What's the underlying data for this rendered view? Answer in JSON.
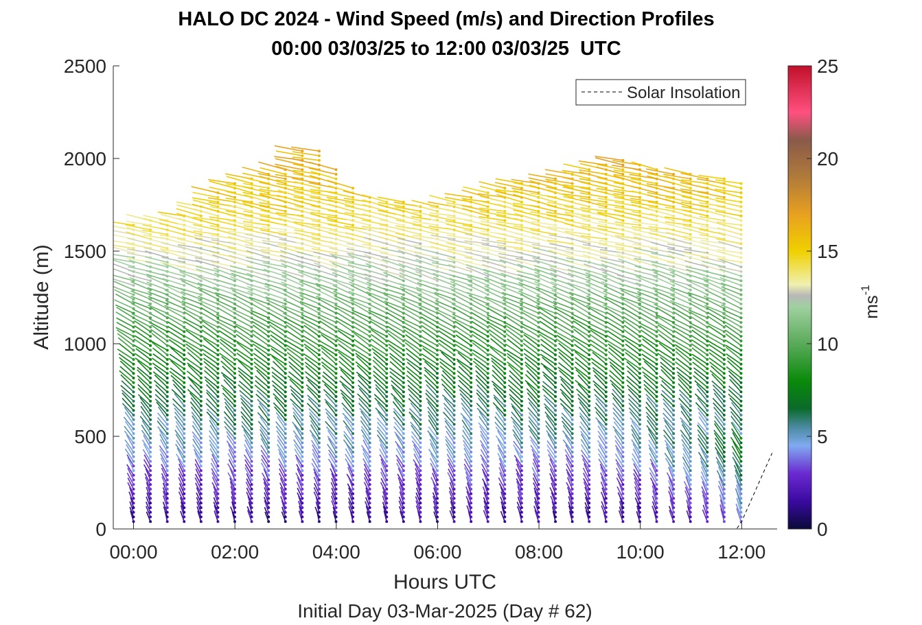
{
  "title_line1": "HALO DC 2024 - Wind Speed (m/s) and Direction Profiles",
  "title_line2": "00:00 03/03/25 to 12:00 03/03/25  UTC",
  "chart_data": {
    "type": "barb-profile",
    "xlabel": "Hours UTC",
    "subtitle": "Initial Day 03-Mar-2025 (Day # 62)",
    "ylabel": "Altitude (m)",
    "xlim_hours": [
      -0.4,
      12.7
    ],
    "ylim": [
      0,
      2500
    ],
    "x_tick_values": [
      0,
      2,
      4,
      6,
      8,
      10,
      12
    ],
    "x_tick_labels": [
      "00:00",
      "02:00",
      "04:00",
      "06:00",
      "08:00",
      "10:00",
      "12:00"
    ],
    "y_ticks": [
      0,
      500,
      1000,
      1500,
      2000,
      2500
    ],
    "colorbar": {
      "label": "ms",
      "label_superscript": "-1",
      "range": [
        0,
        25
      ],
      "ticks": [
        0,
        5,
        10,
        15,
        20,
        25
      ],
      "stops": [
        {
          "v": 0,
          "color": "#0a0a3a"
        },
        {
          "v": 1.5,
          "color": "#3a0aa0"
        },
        {
          "v": 3,
          "color": "#6a2ad0"
        },
        {
          "v": 4.5,
          "color": "#80aaf0"
        },
        {
          "v": 5.5,
          "color": "#4a8aa0"
        },
        {
          "v": 6.5,
          "color": "#0a6a2a"
        },
        {
          "v": 8,
          "color": "#0a8a0a"
        },
        {
          "v": 10,
          "color": "#5aaa5a"
        },
        {
          "v": 12,
          "color": "#a0d0a0"
        },
        {
          "v": 12.6,
          "color": "#b8b8b8"
        },
        {
          "v": 13.2,
          "color": "#f0f0b0"
        },
        {
          "v": 15,
          "color": "#f0d000"
        },
        {
          "v": 17,
          "color": "#e8a020"
        },
        {
          "v": 19,
          "color": "#b07a3a"
        },
        {
          "v": 21,
          "color": "#8a5a4a"
        },
        {
          "v": 22.5,
          "color": "#ff5080"
        },
        {
          "v": 25,
          "color": "#c0102a"
        }
      ]
    },
    "legend": {
      "entry": "Solar Insolation",
      "style": "dashed",
      "position": "top-right"
    },
    "profiles": {
      "interval_hours": 0.333,
      "start_hour": 0,
      "end_hour": 12,
      "altitude_step_m": 25,
      "min_altitude_m": 40,
      "speed_profile_ms": [
        {
          "alt": 50,
          "speed": 1.5
        },
        {
          "alt": 250,
          "speed": 3.0
        },
        {
          "alt": 400,
          "speed": 4.5
        },
        {
          "alt": 550,
          "speed": 5.5
        },
        {
          "alt": 800,
          "speed": 7.5
        },
        {
          "alt": 1100,
          "speed": 9.5
        },
        {
          "alt": 1350,
          "speed": 12.0
        },
        {
          "alt": 1550,
          "speed": 13.5
        },
        {
          "alt": 1750,
          "speed": 15.0
        },
        {
          "alt": 2000,
          "speed": 16.5
        }
      ],
      "top_altitude_by_hour": [
        {
          "h": 0,
          "top": 1660
        },
        {
          "h": 1,
          "top": 1700
        },
        {
          "h": 2,
          "top": 1880
        },
        {
          "h": 3,
          "top": 1960
        },
        {
          "h": 3.5,
          "top": 2090
        },
        {
          "h": 4.5,
          "top": 1800
        },
        {
          "h": 6,
          "top": 1740
        },
        {
          "h": 7.5,
          "top": 1870
        },
        {
          "h": 8.5,
          "top": 1900
        },
        {
          "h": 9.5,
          "top": 2000
        },
        {
          "h": 11,
          "top": 1920
        },
        {
          "h": 12,
          "top": 1880
        }
      ]
    },
    "solar_insolation": {
      "hours": [
        -0.4,
        11.9,
        12.0,
        12.6
      ],
      "altitude_equivalent_m": [
        0,
        0,
        40,
        410
      ]
    }
  }
}
